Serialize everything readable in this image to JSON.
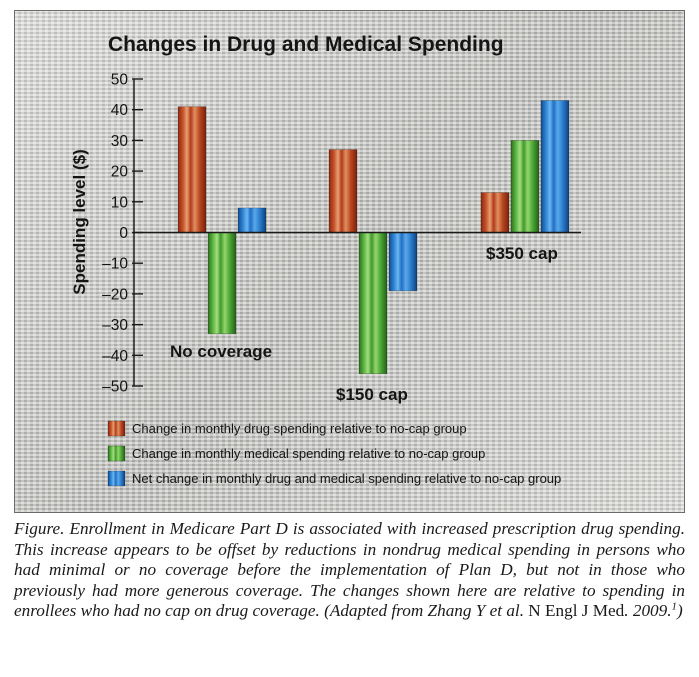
{
  "chart_data": {
    "type": "bar",
    "title": "Changes in Drug and Medical Spending",
    "xlabel": "",
    "ylabel": "Spending level ($)",
    "ylim": [
      -50,
      50
    ],
    "yticks": [
      50,
      40,
      30,
      20,
      10,
      0,
      -10,
      -20,
      -30,
      -40,
      -50
    ],
    "ytick_labels": [
      "50",
      "40",
      "30",
      "20",
      "10",
      "0",
      "–10",
      "–20",
      "–30",
      "–40",
      "–50"
    ],
    "categories": [
      "No coverage",
      "$150 cap",
      "$350 cap"
    ],
    "series": [
      {
        "name": "Change in monthly drug spending relative to no-cap group",
        "color": "#b23a1c",
        "values": [
          41,
          27,
          13
        ]
      },
      {
        "name": "Change in monthly medical spending relative to no-cap group",
        "color": "#3f9a2e",
        "values": [
          -33,
          -46,
          30
        ]
      },
      {
        "name": "Net change in monthly drug and medical spending relative to no-cap group",
        "color": "#1f6fc4",
        "values": [
          8,
          -19,
          43
        ]
      }
    ],
    "grid": false,
    "legend_position": "bottom-left"
  },
  "caption": {
    "main": "Figure. Enrollment in Medicare Part D is associated with increased prescription drug spending. This increase appears to be offset by reductions in nondrug medical spending in persons who had minimal or no coverage before the implementation of Plan D, but not in those who previously had more generous coverage. The changes shown here are relative to spending in enrollees who had no cap on drug coverage. (Adapted from Zhang Y et al. ",
    "journal": "N Engl J Med",
    "tail": ". 2009.",
    "ref": "1",
    "close": ")"
  }
}
